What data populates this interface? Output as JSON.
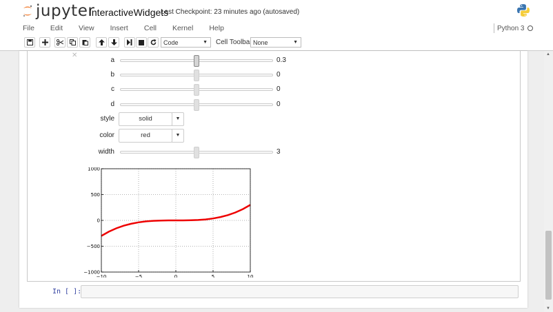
{
  "header": {
    "logo_text": "jupyter",
    "notebook_name": "InteractiveWidgets",
    "checkpoint": "Last Checkpoint: 23 minutes ago (autosaved)",
    "logo_icon": "jupyter-logo-icon",
    "kernel_logo_icon": "python-logo-icon"
  },
  "menubar": {
    "items": [
      "File",
      "Edit",
      "View",
      "Insert",
      "Cell",
      "Kernel",
      "Help"
    ],
    "kernel_name": "Python 3"
  },
  "toolbar": {
    "icons": [
      "save-icon",
      "plus-icon",
      "cut-icon",
      "copy-icon",
      "paste-icon",
      "arrow-up-icon",
      "arrow-down-icon",
      "step-forward-icon",
      "stop-icon",
      "refresh-icon"
    ],
    "cell_type": "Code",
    "cell_toolbar_label": "Cell Toolbar:",
    "cell_toolbar_value": "None"
  },
  "widgets": {
    "sliders": [
      {
        "label": "a",
        "value": "0.3",
        "level": 0.5,
        "active": true
      },
      {
        "label": "b",
        "value": "0",
        "level": 0.5,
        "active": false
      },
      {
        "label": "c",
        "value": "0",
        "level": 0.5,
        "active": false
      },
      {
        "label": "d",
        "value": "0",
        "level": 0.5,
        "active": false
      }
    ],
    "style_label": "style",
    "style_value": "solid",
    "color_label": "color",
    "color_value": "red",
    "width_label": "width",
    "width_value": "3",
    "width_level": 0.5
  },
  "chart_data": {
    "type": "line",
    "title": "",
    "xlabel": "",
    "ylabel": "",
    "xlim": [
      -10,
      10
    ],
    "ylim": [
      -1000,
      1000
    ],
    "xticks": [
      -10,
      -5,
      0,
      5,
      10
    ],
    "yticks": [
      1000,
      500,
      0,
      -500,
      -1000
    ],
    "xtick_labels": [
      "−10",
      "−5",
      "0",
      "5",
      "10"
    ],
    "ytick_labels": [
      "1000",
      "500",
      "0",
      "−500",
      "−1000"
    ],
    "grid": true,
    "line_color": "#ee0000",
    "series": [
      {
        "x": [
          -10,
          -9,
          -8,
          -7,
          -6,
          -5,
          -4,
          -3,
          -2,
          -1,
          0,
          1,
          2,
          3,
          4,
          5,
          6,
          7,
          8,
          9,
          10
        ],
        "values": [
          -300,
          -218.7,
          -153.6,
          -102.9,
          -64.8,
          -37.5,
          -19.2,
          -8.1,
          -2.4,
          -0.3,
          0,
          0.3,
          2.4,
          8.1,
          19.2,
          37.5,
          64.8,
          102.9,
          153.6,
          218.7,
          300
        ]
      }
    ]
  },
  "input_cell": {
    "prompt": "In [ ]:"
  }
}
